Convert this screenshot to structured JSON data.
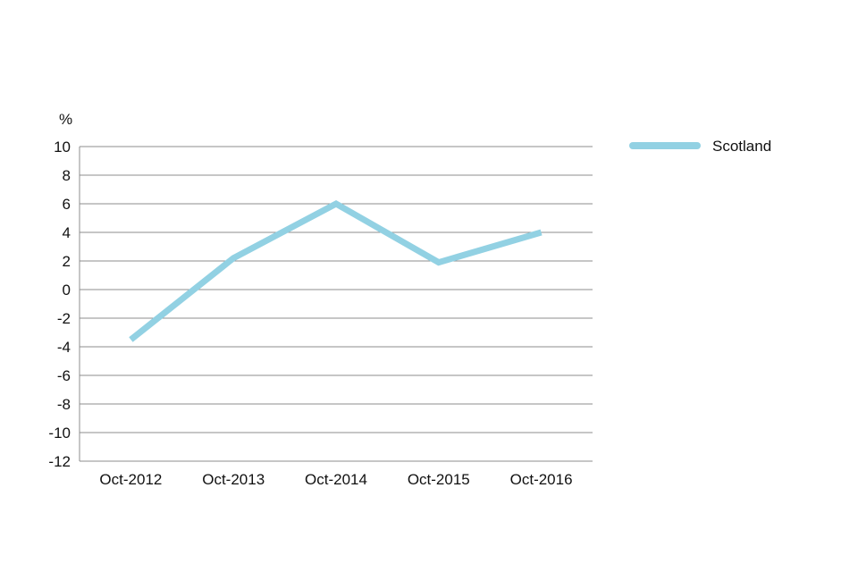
{
  "chart_data": {
    "type": "line",
    "ylabel": "%",
    "ylim": [
      -12,
      10
    ],
    "y_ticks": [
      10,
      8,
      6,
      4,
      2,
      0,
      -2,
      -4,
      -6,
      -8,
      -10,
      -12
    ],
    "categories": [
      "Oct-2012",
      "Oct-2013",
      "Oct-2014",
      "Oct-2015",
      "Oct-2016"
    ],
    "series": [
      {
        "name": "Scotland",
        "values": [
          -3.5,
          2.2,
          6.0,
          1.9,
          4.0
        ],
        "color": "#92d1e3"
      }
    ],
    "grid": true,
    "legend_position": "top-right"
  }
}
